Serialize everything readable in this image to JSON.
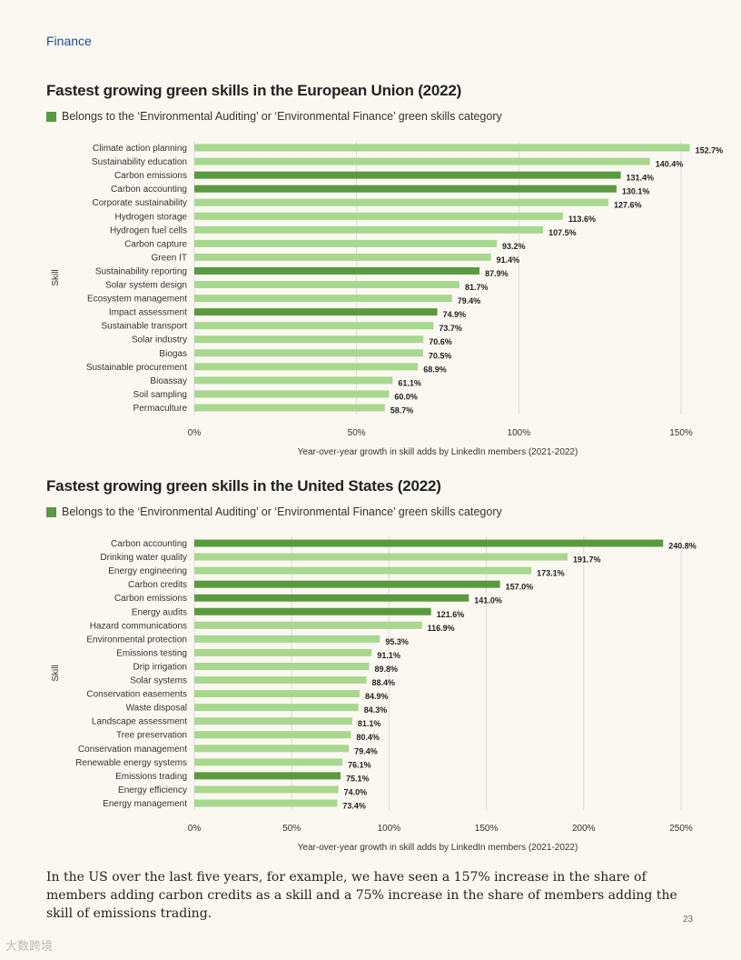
{
  "header": {
    "section": "Finance"
  },
  "legend_text": "Belongs to the ‘Environmental Auditing’ or ‘Environmental Finance’ green skills category",
  "colors": {
    "highlight": "#5a9a3f",
    "normal": "#a8d88e",
    "grid": "#dddddd"
  },
  "chart_data": [
    {
      "type": "bar",
      "orientation": "horizontal",
      "title": "Fastest growing green skills in the European Union (2022)",
      "xlabel": "Year-over-year growth in skill adds by LinkedIn members (2021-2022)",
      "ylabel": "Skill",
      "xlim": [
        0,
        150
      ],
      "xticks": [
        0,
        50,
        100,
        150
      ],
      "xtick_labels": [
        "0%",
        "50%",
        "100%",
        "150%"
      ],
      "categories": [
        "Climate action planning",
        "Sustainability education",
        "Carbon emissions",
        "Carbon accounting",
        "Corporate sustainability",
        "Hydrogen storage",
        "Hydrogen fuel cells",
        "Carbon capture",
        "Green IT",
        "Sustainability reporting",
        "Solar system design",
        "Ecosystem management",
        "Impact assessment",
        "Sustainable transport",
        "Solar industry",
        "Biogas",
        "Sustainable procurement",
        "Bioassay",
        "Soil sampling",
        "Permaculture"
      ],
      "values": [
        152.7,
        140.4,
        131.4,
        130.1,
        127.6,
        113.6,
        107.5,
        93.2,
        91.4,
        87.9,
        81.7,
        79.4,
        74.9,
        73.7,
        70.6,
        70.5,
        68.9,
        61.1,
        60.0,
        58.7
      ],
      "value_labels": [
        "152.7%",
        "140.4%",
        "131.4%",
        "130.1%",
        "127.6%",
        "113.6%",
        "107.5%",
        "93.2%",
        "91.4%",
        "87.9%",
        "81.7%",
        "79.4%",
        "74.9%",
        "73.7%",
        "70.6%",
        "70.5%",
        "68.9%",
        "61.1%",
        "60.0%",
        "58.7%"
      ],
      "highlighted": [
        false,
        false,
        true,
        true,
        false,
        false,
        false,
        false,
        false,
        true,
        false,
        false,
        true,
        false,
        false,
        false,
        false,
        false,
        false,
        false
      ]
    },
    {
      "type": "bar",
      "orientation": "horizontal",
      "title": "Fastest growing green skills in the United States (2022)",
      "xlabel": "Year-over-year growth in skill adds by LinkedIn members (2021-2022)",
      "ylabel": "Skill",
      "xlim": [
        0,
        250
      ],
      "xticks": [
        0,
        50,
        100,
        150,
        200,
        250
      ],
      "xtick_labels": [
        "0%",
        "50%",
        "100%",
        "150%",
        "200%",
        "250%"
      ],
      "categories": [
        "Carbon accounting",
        "Drinking water quality",
        "Energy engineering",
        "Carbon credits",
        "Carbon emissions",
        "Energy audits",
        "Hazard communications",
        "Environmental protection",
        "Emissions testing",
        "Drip irrigation",
        "Solar systems",
        "Conservation easements",
        "Waste disposal",
        "Landscape assessment",
        "Tree preservation",
        "Conservation management",
        "Renewable energy systems",
        "Emissions trading",
        "Energy efficiency",
        "Energy management"
      ],
      "values": [
        240.8,
        191.7,
        173.1,
        157.0,
        141.0,
        121.6,
        116.9,
        95.3,
        91.1,
        89.8,
        88.4,
        84.9,
        84.3,
        81.1,
        80.4,
        79.4,
        76.1,
        75.1,
        74.0,
        73.4
      ],
      "value_labels": [
        "240.8%",
        "191.7%",
        "173.1%",
        "157.0%",
        "141.0%",
        "121.6%",
        "116.9%",
        "95.3%",
        "91.1%",
        "89.8%",
        "88.4%",
        "84.9%",
        "84.3%",
        "81.1%",
        "80.4%",
        "79.4%",
        "76.1%",
        "75.1%",
        "74.0%",
        "73.4%"
      ],
      "highlighted": [
        true,
        false,
        false,
        true,
        true,
        true,
        false,
        false,
        false,
        false,
        false,
        false,
        false,
        false,
        false,
        false,
        false,
        true,
        false,
        false
      ]
    }
  ],
  "body_text": "In the US over the last five years, for example, we have seen a 157% increase in the share of members adding carbon credits as a skill and a 75% increase in the share of members adding the skill of emissions trading.",
  "page_number": "23",
  "watermark": "大数跨境"
}
